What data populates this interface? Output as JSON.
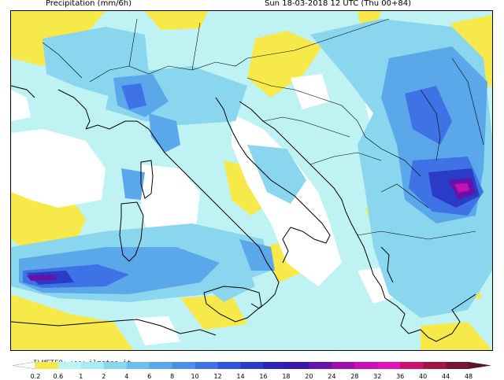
{
  "header": {
    "title": "Precipitation (mm/6h)",
    "datetime": "Sun 18-03-2018 12 UTC (Thu 00+84)"
  },
  "watermark": "ILMETEO: www.ilmeteo.it",
  "legend": {
    "ticks": [
      "0.2",
      "0.6",
      "1",
      "2",
      "4",
      "6",
      "8",
      "10",
      "12",
      "14",
      "16",
      "18",
      "20",
      "24",
      "28",
      "32",
      "36",
      "40",
      "44",
      "48"
    ],
    "colors": [
      "#ffffff",
      "#f8e94a",
      "#bff2f2",
      "#a6ecf2",
      "#8ad6ef",
      "#6cc0ec",
      "#5aa8ea",
      "#4d8ee8",
      "#3f72e4",
      "#3254d8",
      "#2a3bc8",
      "#2a22b8",
      "#3a18a8",
      "#6414a8",
      "#9a10a8",
      "#c810b0",
      "#e014b8",
      "#c8146e",
      "#a01448",
      "#7a1436",
      "#581428"
    ]
  },
  "map": {
    "colors": {
      "land": "#ffffff",
      "yellow": "#f8e94a",
      "light": "#bff2f2",
      "mid": "#8ad6ef",
      "blue": "#5aa8ea",
      "deep": "#3f72e4",
      "navy": "#2a3bc8",
      "purple": "#6414a8",
      "magenta": "#c810b0"
    }
  }
}
